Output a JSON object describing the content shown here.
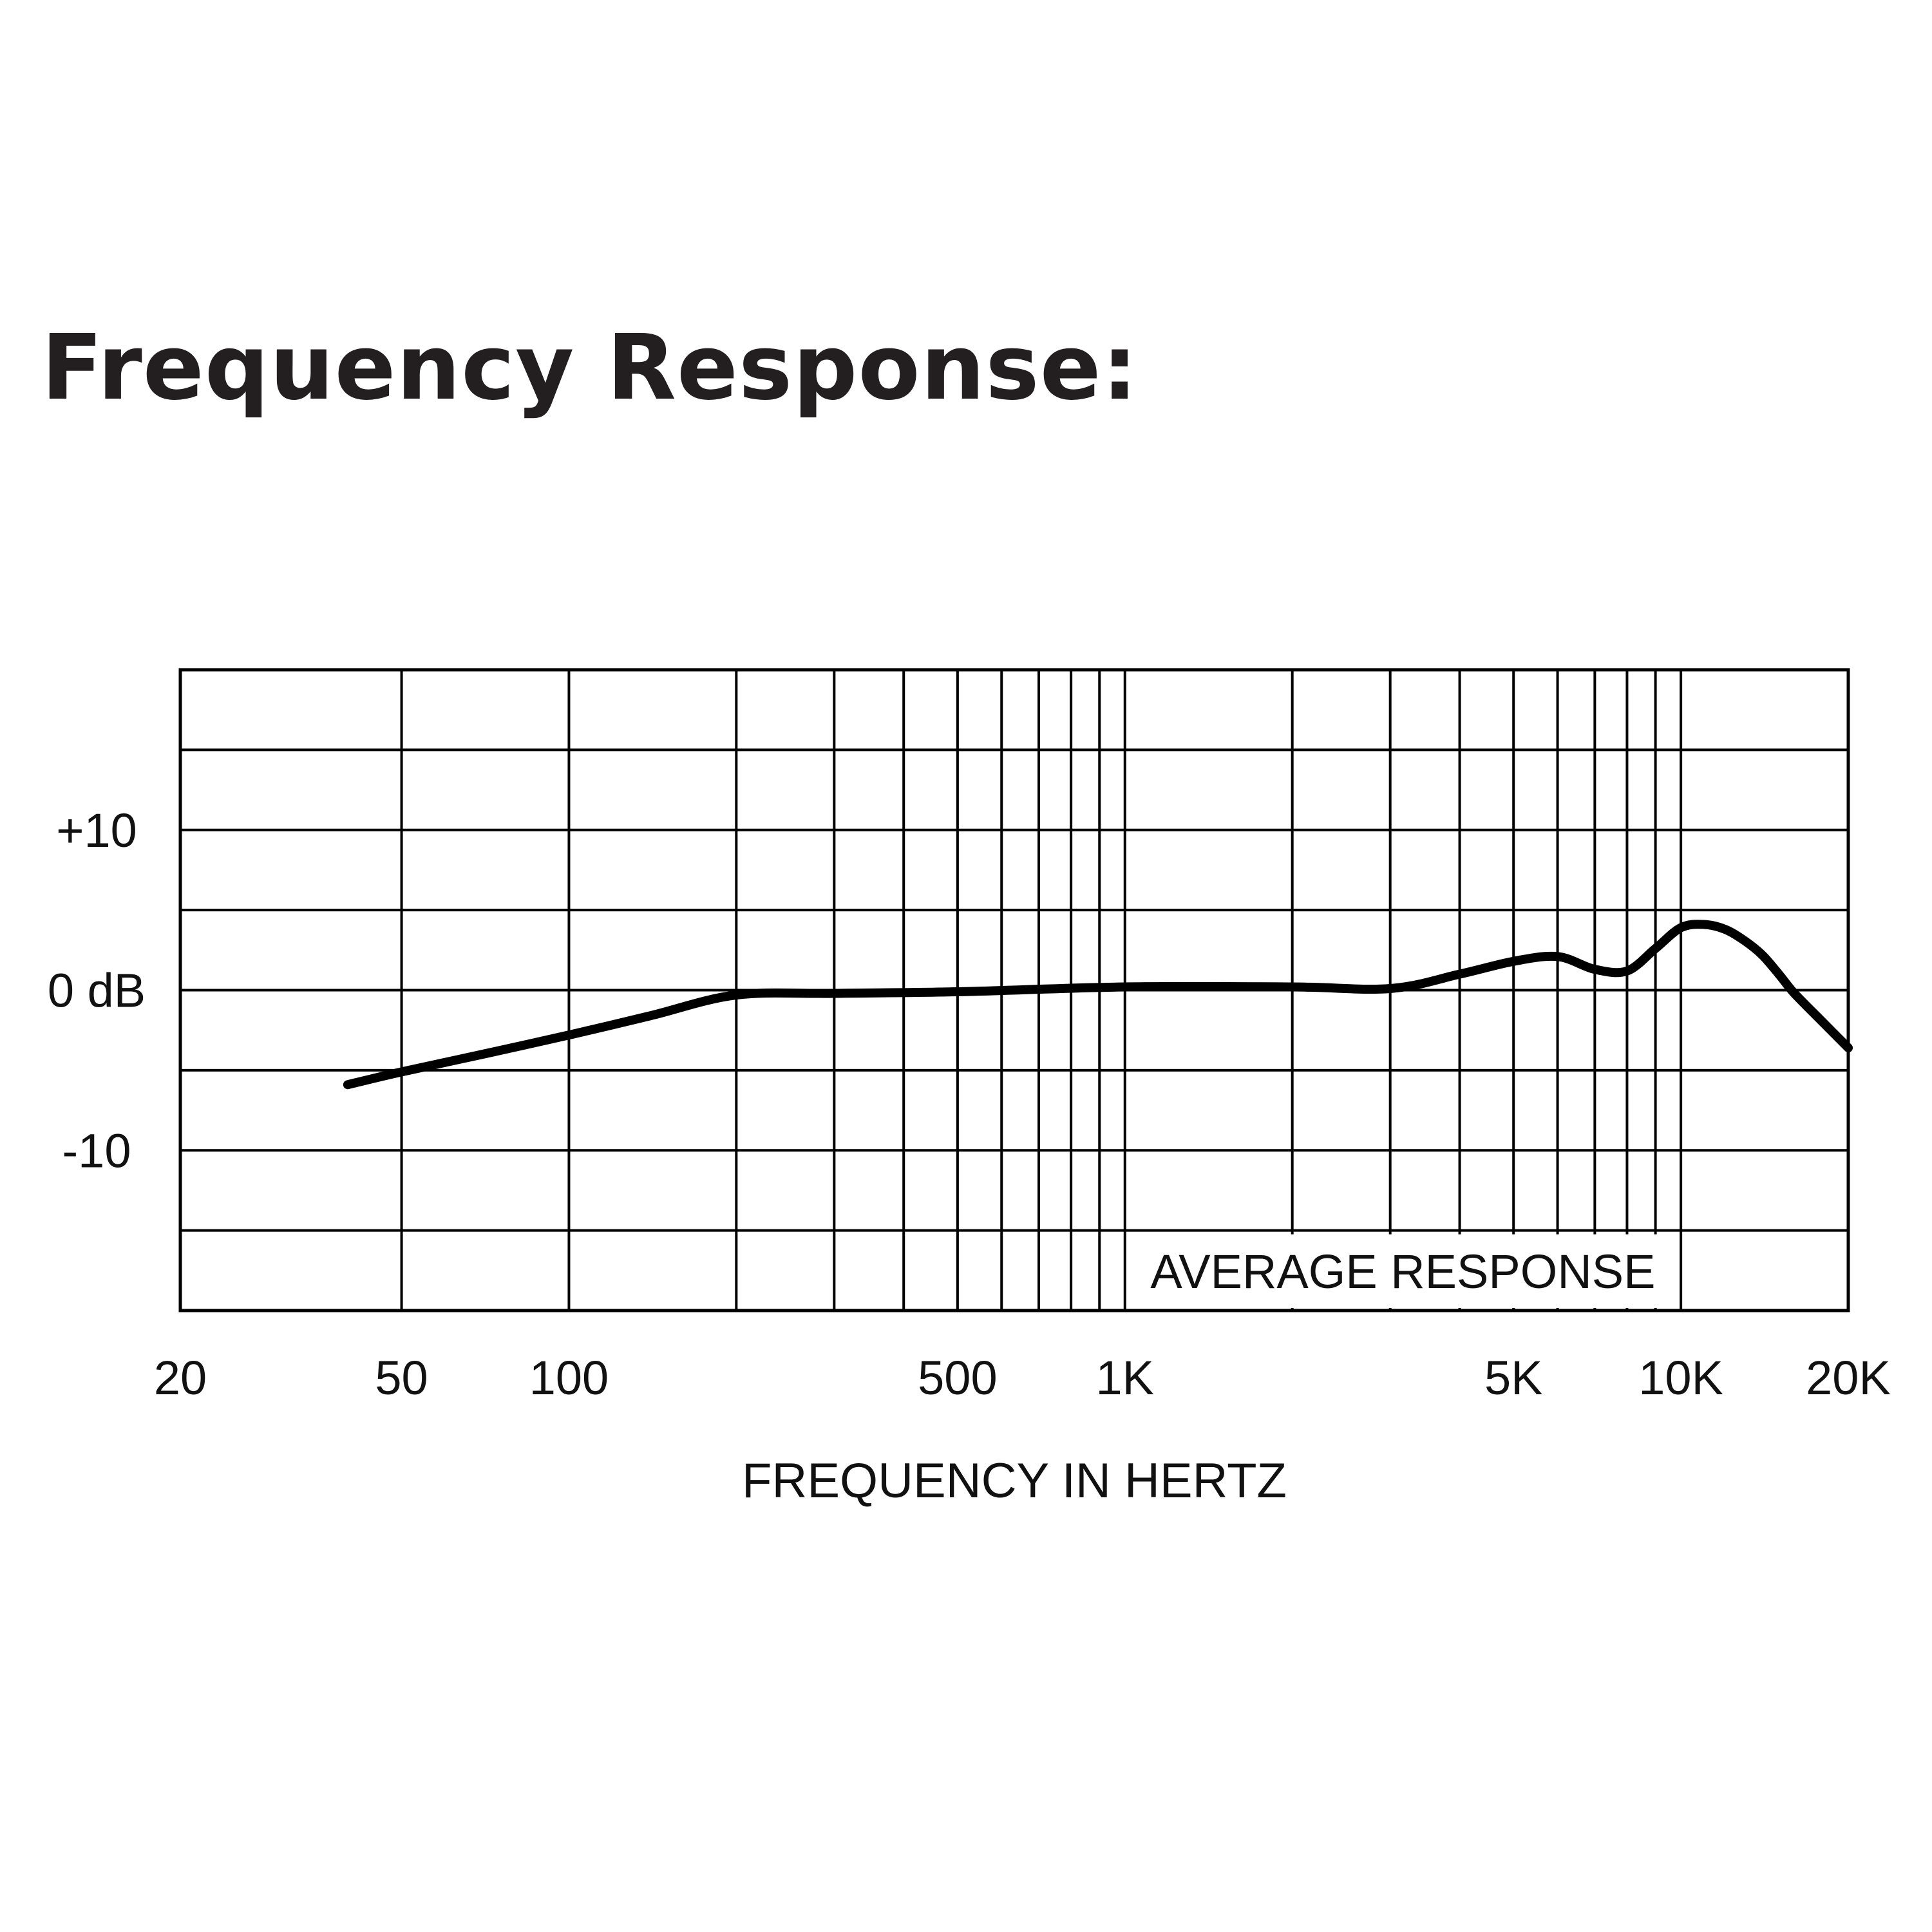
{
  "page": {
    "title": "Frequency Response:"
  },
  "chart_data": {
    "type": "line",
    "xscale": "log",
    "xlim": [
      20,
      20000
    ],
    "ylim": [
      -20,
      20
    ],
    "xlabel": "FREQUENCY IN HERTZ",
    "ylabel": "",
    "grid": true,
    "x_ticks": [
      {
        "value": 20,
        "label": "20"
      },
      {
        "value": 50,
        "label": "50"
      },
      {
        "value": 100,
        "label": "100"
      },
      {
        "value": 500,
        "label": "500"
      },
      {
        "value": 1000,
        "label": "1K"
      },
      {
        "value": 5000,
        "label": "5K"
      },
      {
        "value": 10000,
        "label": "10K"
      },
      {
        "value": 20000,
        "label": "20K"
      }
    ],
    "y_ticks": [
      {
        "value": 10,
        "label": "+10"
      },
      {
        "value": 0,
        "label": "0 dB"
      },
      {
        "value": -10,
        "label": "-10"
      }
    ],
    "x_grid": [
      50,
      100,
      200,
      300,
      400,
      500,
      600,
      700,
      800,
      900,
      1000,
      2000,
      3000,
      4000,
      5000,
      6000,
      7000,
      8000,
      9000,
      10000
    ],
    "y_grid": [
      -15,
      -10,
      -5,
      0,
      5,
      10,
      15
    ],
    "annotation": "AVERAGE RESPONSE",
    "series": [
      {
        "name": "",
        "x": [
          40,
          50,
          70,
          100,
          140,
          200,
          300,
          500,
          1000,
          2000,
          3000,
          4000,
          5000,
          6000,
          7000,
          8000,
          9000,
          10000,
          11000,
          12000,
          13000,
          14000,
          15000,
          16000,
          18000,
          20000
        ],
        "y": [
          -5.9,
          -5.1,
          -4.0,
          -2.8,
          -1.6,
          -0.3,
          -0.2,
          -0.1,
          0.2,
          0.2,
          0.1,
          1.0,
          1.8,
          2.1,
          1.3,
          1.2,
          2.6,
          3.9,
          4.1,
          3.8,
          3.1,
          2.2,
          1.0,
          -0.2,
          -2.0,
          -3.6
        ]
      }
    ],
    "line_color": "#000000"
  }
}
